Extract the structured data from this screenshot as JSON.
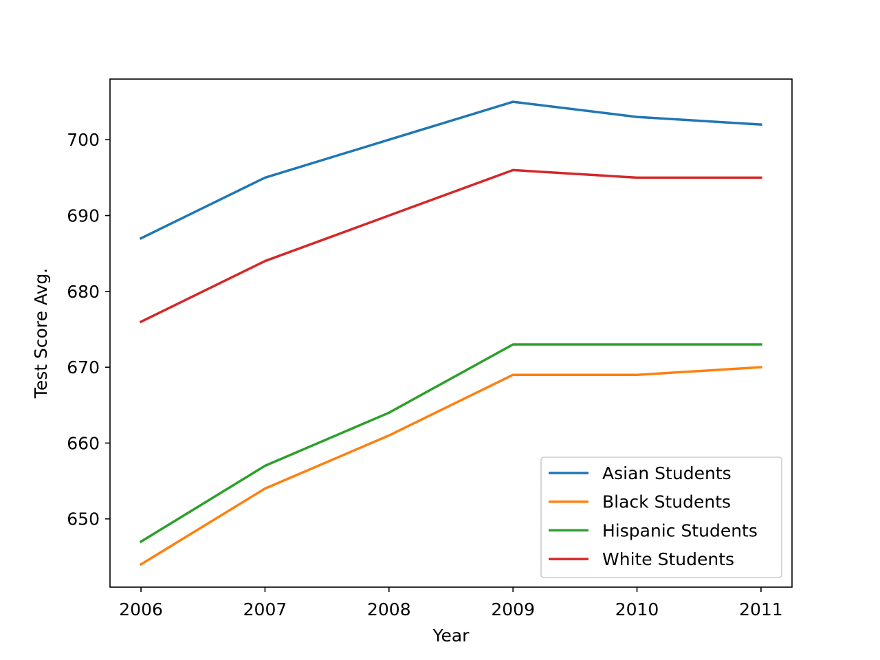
{
  "chart_data": {
    "type": "line",
    "title": "",
    "xlabel": "Year",
    "ylabel": "Test Score Avg.",
    "x": [
      2006,
      2007,
      2008,
      2009,
      2010,
      2011
    ],
    "x_tick_labels": [
      "2006",
      "2007",
      "2008",
      "2009",
      "2010",
      "2011"
    ],
    "y_ticks": [
      650,
      660,
      670,
      680,
      690,
      700
    ],
    "y_tick_labels": [
      "650",
      "660",
      "670",
      "680",
      "690",
      "700"
    ],
    "xlim": [
      2005.75,
      2011.25
    ],
    "ylim": [
      641.0,
      708.0
    ],
    "grid": false,
    "legend_position": "lower-right",
    "series": [
      {
        "name": "Asian Students",
        "color": "#1f77b4",
        "values": [
          687,
          695,
          700,
          705,
          703,
          702
        ]
      },
      {
        "name": "Black Students",
        "color": "#ff7f0e",
        "values": [
          644,
          654,
          661,
          669,
          669,
          670
        ]
      },
      {
        "name": "Hispanic Students",
        "color": "#2ca02c",
        "values": [
          647,
          657,
          664,
          673,
          673,
          673
        ]
      },
      {
        "name": "White Students",
        "color": "#d62728",
        "values": [
          676,
          684,
          690,
          696,
          695,
          695
        ]
      }
    ]
  }
}
